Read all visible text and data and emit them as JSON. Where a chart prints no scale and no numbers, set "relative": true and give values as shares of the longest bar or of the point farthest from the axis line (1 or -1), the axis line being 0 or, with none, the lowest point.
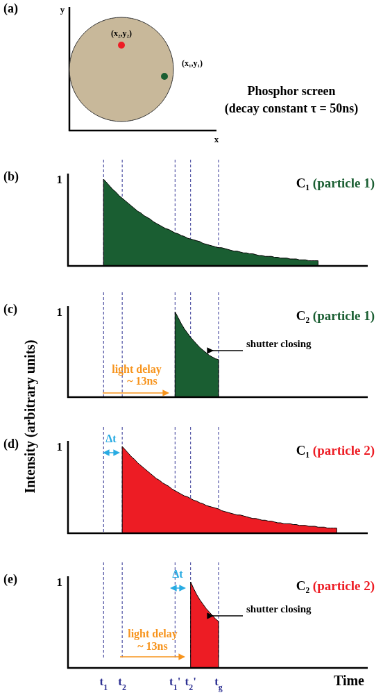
{
  "chart_data": [
    {
      "type": "other",
      "xlabel": "x",
      "ylabel": "y",
      "annotations": [
        "(a)",
        "(x₂,y₂)",
        "(x₁,y₁)",
        "Phosphor screen",
        "(decay constant τ = 50ns)"
      ]
    },
    {
      "type": "area",
      "title": "C₁ (particle 1)",
      "relative": true,
      "tick_labels": false,
      "categories": [
        null,
        null,
        null,
        null,
        null,
        null,
        null,
        null,
        null,
        null,
        null,
        "t$_{1}$",
        null,
        null,
        null,
        null,
        null,
        "t$_{2}$",
        null,
        null,
        null,
        null,
        null,
        null,
        null,
        null,
        null,
        null,
        null,
        null,
        null,
        null,
        null,
        null,
        "t$_{1}$'",
        null,
        null,
        null,
        null,
        "t$_{2}$'",
        null,
        null,
        null,
        null,
        null,
        null,
        null,
        null,
        "t$_{g}$",
        null,
        null,
        null,
        null,
        null,
        null,
        null,
        null,
        null,
        null,
        null,
        null,
        null,
        null,
        null,
        null,
        null,
        null,
        null,
        null,
        null,
        null,
        null,
        null,
        null,
        null,
        null,
        null,
        null,
        null,
        null,
        null,
        null,
        null,
        null,
        null,
        null,
        null,
        null,
        null,
        null,
        null,
        null,
        null,
        null,
        null,
        null,
        null
      ],
      "values": [
        null,
        null,
        null,
        null,
        null,
        null,
        null,
        null,
        null,
        null,
        null,
        1,
        0.96,
        0.92,
        0.88,
        0.85,
        0.81,
        0.78,
        0.75,
        0.72,
        0.69,
        0.66,
        0.63,
        0.61,
        0.58,
        0.56,
        0.54,
        0.51,
        0.49,
        0.47,
        0.45,
        0.43,
        0.42,
        0.4,
        0.38,
        0.37,
        0.35,
        0.34,
        0.32,
        0.31,
        0.3,
        0.29,
        0.28,
        0.26,
        0.25,
        0.24,
        0.23,
        0.22,
        0.21,
        0.21,
        0.2,
        0.19,
        0.18,
        0.17,
        0.17,
        0.16,
        0.15,
        0.15,
        0.14,
        0.14,
        0.13,
        0.12,
        0.12,
        0.11,
        0.11,
        0.11,
        0.1,
        0.1,
        0.09,
        0.09,
        0.09,
        0.08,
        0.08,
        0.08,
        0.07,
        0.07,
        0.07,
        0.06,
        0.06,
        0.06,
        0.06,
        null,
        null,
        null,
        null,
        null,
        null,
        null,
        null,
        null,
        null,
        null,
        null,
        null,
        null,
        null,
        null
      ],
      "color": "#1a5e32",
      "annotations": [
        "(b)",
        "1"
      ],
      "ref_lines": [
        {
          "axis": "x",
          "value": "t$_{1}$",
          "color": "#2e3192",
          "line_style": "dashed"
        },
        {
          "axis": "x",
          "value": "t$_{2}$",
          "color": "#2e3192",
          "line_style": "dashed"
        },
        {
          "axis": "x",
          "value": "t$_{1}$'",
          "color": "#2e3192",
          "line_style": "dashed"
        },
        {
          "axis": "x",
          "value": "t$_{2}$'",
          "color": "#2e3192",
          "line_style": "dashed"
        },
        {
          "axis": "x",
          "value": "t$_{g}$",
          "color": "#2e3192",
          "line_style": "dashed"
        }
      ]
    },
    {
      "type": "area",
      "title": "C₂ (particle 1)",
      "ylabel": "Intensity (arbitrary units)",
      "relative": true,
      "tick_labels": false,
      "categories": [
        null,
        null,
        null,
        null,
        null,
        null,
        null,
        null,
        null,
        null,
        null,
        "t$_{1}$",
        null,
        null,
        null,
        null,
        null,
        "t$_{2}$",
        null,
        null,
        null,
        null,
        null,
        null,
        null,
        null,
        null,
        null,
        null,
        null,
        null,
        null,
        null,
        null,
        "t$_{1}$'",
        null,
        null,
        null,
        null,
        "t$_{2}$'",
        null,
        null,
        null,
        null,
        null,
        null,
        null,
        null,
        "t$_{g}$",
        null,
        null,
        null,
        null,
        null,
        null,
        null,
        null,
        null,
        null,
        null,
        null,
        null,
        null,
        null,
        null,
        null,
        null,
        null,
        null,
        null,
        null,
        null,
        null,
        null,
        null,
        null,
        null,
        null,
        null,
        null,
        null,
        null,
        null,
        null,
        null,
        null,
        null,
        null,
        null,
        null,
        null,
        null,
        null,
        null,
        null,
        null,
        null
      ],
      "values": [
        null,
        null,
        null,
        null,
        null,
        null,
        null,
        null,
        null,
        null,
        null,
        null,
        null,
        null,
        null,
        null,
        null,
        null,
        null,
        null,
        null,
        null,
        null,
        null,
        null,
        null,
        null,
        null,
        null,
        null,
        null,
        null,
        null,
        null,
        1,
        0.93,
        0.86,
        0.8,
        0.75,
        0.7,
        0.66,
        0.62,
        0.58,
        0.55,
        0.52,
        0.49,
        0.47,
        0.45,
        0.44,
        null,
        null,
        null,
        null,
        null,
        null,
        null,
        null,
        null,
        null,
        null,
        null,
        null,
        null,
        null,
        null,
        null,
        null,
        null,
        null,
        null,
        null,
        null,
        null,
        null,
        null,
        null,
        null,
        null,
        null,
        null,
        null,
        null,
        null,
        null,
        null,
        null,
        null,
        null,
        null,
        null,
        null,
        null,
        null,
        null,
        null,
        null,
        null
      ],
      "color": "#1a5e32",
      "annotations": [
        "(c)",
        "1",
        "light delay",
        "~ 13ns",
        "shutter closing"
      ],
      "ref_lines": [
        {
          "axis": "x",
          "value": "t$_{1}$",
          "color": "#2e3192",
          "line_style": "dashed"
        },
        {
          "axis": "x",
          "value": "t$_{2}$",
          "color": "#2e3192",
          "line_style": "dashed"
        },
        {
          "axis": "x",
          "value": "t$_{1}$'",
          "color": "#2e3192",
          "line_style": "dashed"
        },
        {
          "axis": "x",
          "value": "t$_{2}$'",
          "color": "#2e3192",
          "line_style": "dashed"
        },
        {
          "axis": "x",
          "value": "t$_{g}$",
          "color": "#2e3192",
          "line_style": "dashed"
        }
      ]
    },
    {
      "type": "area",
      "title": "C₁ (particle 2)",
      "relative": true,
      "tick_labels": false,
      "categories": [
        null,
        null,
        null,
        null,
        null,
        null,
        null,
        null,
        null,
        null,
        null,
        "t$_{1}$",
        null,
        null,
        null,
        null,
        null,
        "t$_{2}$",
        null,
        null,
        null,
        null,
        null,
        null,
        null,
        null,
        null,
        null,
        null,
        null,
        null,
        null,
        null,
        null,
        "t$_{1}$'",
        null,
        null,
        null,
        null,
        "t$_{2}$'",
        null,
        null,
        null,
        null,
        null,
        null,
        null,
        null,
        "t$_{g}$",
        null,
        null,
        null,
        null,
        null,
        null,
        null,
        null,
        null,
        null,
        null,
        null,
        null,
        null,
        null,
        null,
        null,
        null,
        null,
        null,
        null,
        null,
        null,
        null,
        null,
        null,
        null,
        null,
        null,
        null,
        null,
        null,
        null,
        null,
        null,
        null,
        null,
        null,
        null,
        null,
        null,
        null,
        null,
        null,
        null,
        null,
        null,
        null
      ],
      "values": [
        null,
        null,
        null,
        null,
        null,
        null,
        null,
        null,
        null,
        null,
        null,
        null,
        null,
        null,
        null,
        null,
        null,
        1,
        0.96,
        0.92,
        0.88,
        0.85,
        0.81,
        0.78,
        0.75,
        0.72,
        0.69,
        0.66,
        0.63,
        0.61,
        0.58,
        0.56,
        0.54,
        0.51,
        0.49,
        0.47,
        0.45,
        0.43,
        0.42,
        0.4,
        0.38,
        0.37,
        0.35,
        0.34,
        0.32,
        0.31,
        0.3,
        0.29,
        0.28,
        0.26,
        0.25,
        0.24,
        0.23,
        0.22,
        0.21,
        0.21,
        0.2,
        0.19,
        0.18,
        0.17,
        0.17,
        0.16,
        0.15,
        0.15,
        0.14,
        0.14,
        0.13,
        0.12,
        0.12,
        0.11,
        0.11,
        0.11,
        0.1,
        0.1,
        0.09,
        0.09,
        0.09,
        0.08,
        0.08,
        0.08,
        0.07,
        0.07,
        0.07,
        0.06,
        0.06,
        0.06,
        0.06,
        null,
        null,
        null,
        null,
        null,
        null,
        null,
        null,
        null,
        null
      ],
      "color": "#ed1c24",
      "annotations": [
        "(d)",
        "1",
        "Δt"
      ],
      "ref_lines": [
        {
          "axis": "x",
          "value": "t$_{1}$",
          "color": "#2e3192",
          "line_style": "dashed"
        },
        {
          "axis": "x",
          "value": "t$_{2}$",
          "color": "#2e3192",
          "line_style": "dashed"
        },
        {
          "axis": "x",
          "value": "t$_{1}$'",
          "color": "#2e3192",
          "line_style": "dashed"
        },
        {
          "axis": "x",
          "value": "t$_{2}$'",
          "color": "#2e3192",
          "line_style": "dashed"
        },
        {
          "axis": "x",
          "value": "t$_{g}$",
          "color": "#2e3192",
          "line_style": "dashed"
        }
      ]
    },
    {
      "type": "area",
      "title": "C₂ (particle 2)",
      "xlabel": "Time",
      "relative": true,
      "tick_labels": "x",
      "categories": [
        null,
        null,
        null,
        null,
        null,
        null,
        null,
        null,
        null,
        null,
        null,
        "t$_{1}$",
        null,
        null,
        null,
        null,
        null,
        "t$_{2}$",
        null,
        null,
        null,
        null,
        null,
        null,
        null,
        null,
        null,
        null,
        null,
        null,
        null,
        null,
        null,
        null,
        "t$_{1}$'",
        null,
        null,
        null,
        null,
        "t$_{2}$'",
        null,
        null,
        null,
        null,
        null,
        null,
        null,
        null,
        "t$_{g}$",
        null,
        null,
        null,
        null,
        null,
        null,
        null,
        null,
        null,
        null,
        null,
        null,
        null,
        null,
        null,
        null,
        null,
        null,
        null,
        null,
        null,
        null,
        null,
        null,
        null,
        null,
        null,
        null,
        null,
        null,
        null,
        null,
        null,
        null,
        null,
        null,
        null,
        null,
        null,
        null,
        null,
        null,
        null,
        null,
        null,
        null,
        null,
        null
      ],
      "values": [
        null,
        null,
        null,
        null,
        null,
        null,
        null,
        null,
        null,
        null,
        null,
        null,
        null,
        null,
        null,
        null,
        null,
        null,
        null,
        null,
        null,
        null,
        null,
        null,
        null,
        null,
        null,
        null,
        null,
        null,
        null,
        null,
        null,
        null,
        null,
        null,
        null,
        null,
        null,
        1,
        0.92,
        0.85,
        0.79,
        0.74,
        0.69,
        0.65,
        0.61,
        0.57,
        0.54,
        null,
        null,
        null,
        null,
        null,
        null,
        null,
        null,
        null,
        null,
        null,
        null,
        null,
        null,
        null,
        null,
        null,
        null,
        null,
        null,
        null,
        null,
        null,
        null,
        null,
        null,
        null,
        null,
        null,
        null,
        null,
        null,
        null,
        null,
        null,
        null,
        null,
        null,
        null,
        null,
        null,
        null,
        null,
        null,
        null,
        null,
        null,
        null
      ],
      "color": "#ed1c24",
      "annotations": [
        "(e)",
        "1",
        "Δt",
        "light delay",
        "~ 13ns",
        "shutter closing"
      ],
      "ref_lines": [
        {
          "axis": "x",
          "value": "t$_{1}$",
          "color": "#2e3192",
          "line_style": "dashed"
        },
        {
          "axis": "x",
          "value": "t$_{2}$",
          "color": "#2e3192",
          "line_style": "dashed"
        },
        {
          "axis": "x",
          "value": "t$_{1}$'",
          "color": "#2e3192",
          "line_style": "dashed"
        },
        {
          "axis": "x",
          "value": "t$_{2}$'",
          "color": "#2e3192",
          "line_style": "dashed"
        },
        {
          "axis": "x",
          "value": "t$_{g}$",
          "color": "#2e3192",
          "line_style": "dashed"
        }
      ]
    }
  ]
}
